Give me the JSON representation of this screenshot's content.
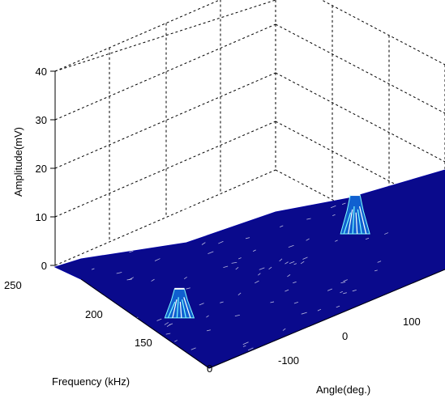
{
  "chart_data": {
    "type": "surface3d",
    "zlabel": "Amplitude(mV)",
    "ylabel": "Frequency (kHz)",
    "xlabel": "Angle(deg.)",
    "zticks": [
      "0",
      "10",
      "20",
      "30",
      "40"
    ],
    "yticks": [
      "250",
      "200",
      "150",
      "0"
    ],
    "xticks": [
      "-100",
      "0",
      "100"
    ],
    "zlim": [
      0,
      40
    ],
    "grid": true,
    "box": "dashed",
    "colormap": "jet-like (dark blue base, cyan/white peaks)",
    "peaks": [
      {
        "angle_deg": -150,
        "frequency_khz": 160,
        "amplitude_mv": 6
      },
      {
        "angle_deg": 180,
        "frequency_khz": 170,
        "amplitude_mv": 8
      }
    ],
    "colors": {
      "surface": "#0a0a8c",
      "mesh": "#ffffff",
      "peak": "#7fffff"
    }
  }
}
